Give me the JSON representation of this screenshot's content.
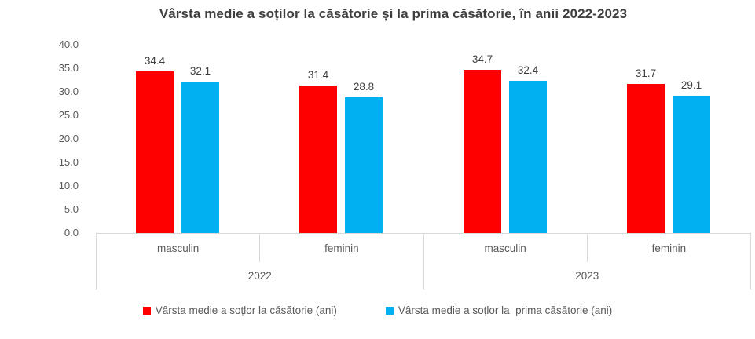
{
  "chart_data": {
    "type": "bar",
    "title": "Vârsta medie a soților la căsătorie și la prima căsătorie, în anii 2022-2023",
    "xlabel": "",
    "ylabel": "",
    "ylim": [
      0,
      40
    ],
    "ytick_step": 5,
    "ytick_decimals": 1,
    "value_label_decimals": 1,
    "grid": false,
    "legend_position": "bottom",
    "categories_level1": [
      "masculin",
      "feminin",
      "masculin",
      "feminin"
    ],
    "categories_level2": [
      "2022",
      "2023"
    ],
    "series": [
      {
        "key": "casatorie",
        "name": "Vârsta medie a soțlor la căsătorie (ani)",
        "color": "#ff0000",
        "values": [
          34.4,
          31.4,
          34.7,
          31.7
        ]
      },
      {
        "key": "prima-casatorie",
        "name": "Vârsta medie a soțlor la  prima căsătorie (ani)",
        "color": "#00b0f0",
        "values": [
          32.1,
          28.8,
          32.4,
          29.1
        ]
      }
    ],
    "colors": {
      "title_text": "#3f3f3f",
      "axis_text": "#595959",
      "data_label_text": "#404040",
      "axis_line": "#d9d9d9",
      "plot_background": "#ffffff"
    }
  }
}
